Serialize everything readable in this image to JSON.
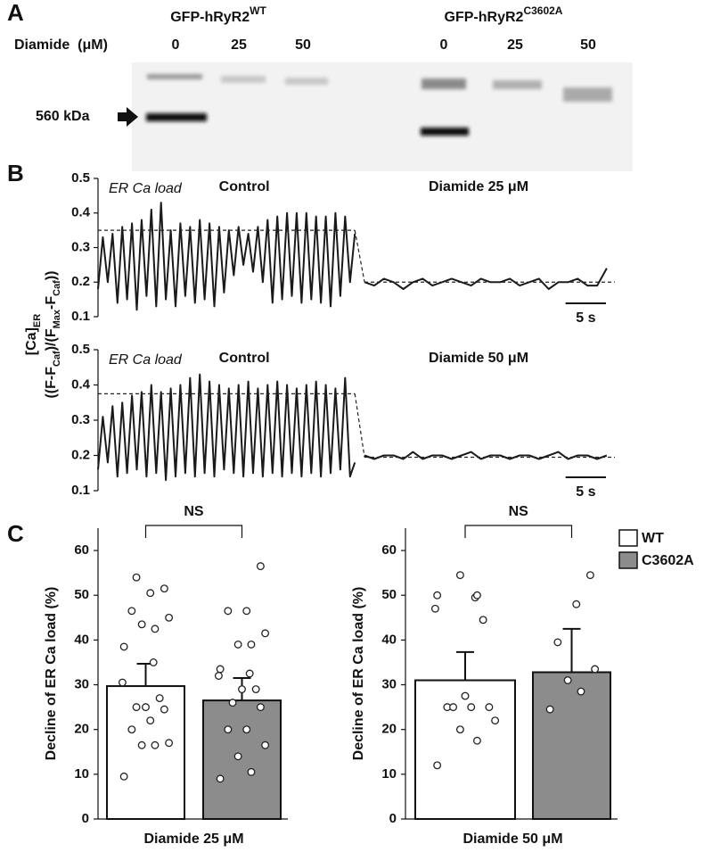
{
  "panel_a": {
    "label": "A",
    "constructs": [
      {
        "name": "GFP-hRyR2",
        "sup": "WT"
      },
      {
        "name": "GFP-hRyR2",
        "sup": "C3602A"
      }
    ],
    "row_label": "Diamide  (μM)",
    "lanes": [
      0,
      25,
      50,
      0,
      25,
      50
    ],
    "marker": "560 kDa"
  },
  "chart_data": [
    {
      "type": "line",
      "panel": "B",
      "ylabel": [
        [
          "[Ca]",
          "ER"
        ],
        [
          "((F-F",
          "Caf",
          ")/(F",
          "Max",
          "-F",
          "Caf",
          "))"
        ]
      ],
      "annotation": "ER Ca load",
      "ylim": [
        0.1,
        0.5
      ],
      "yticks": [
        0.1,
        0.2,
        0.3,
        0.4,
        0.5
      ],
      "xlim": [
        0,
        64
      ],
      "series": [
        {
          "name": "Control",
          "color": "#1a1a1a",
          "x": [
            0,
            0.6,
            1.2,
            1.8,
            2.4,
            3,
            3.6,
            4.2,
            4.8,
            5.4,
            6,
            6.6,
            7.2,
            7.8,
            8.4,
            9,
            9.6,
            10.2,
            10.8,
            11.4,
            12,
            12.6,
            13.2,
            13.8,
            14.4,
            15,
            15.6,
            16.2,
            16.8,
            17.4,
            18,
            18.6,
            19.2,
            19.8,
            20.4,
            21,
            21.6,
            22.2,
            22.8,
            23.4,
            24,
            24.6,
            25.2,
            25.8,
            26.4,
            27,
            27.6,
            28.2,
            28.8,
            29.4,
            30,
            30.6,
            31.2,
            31.8
          ],
          "values": [
            0.18,
            0.33,
            0.2,
            0.34,
            0.14,
            0.36,
            0.15,
            0.37,
            0.12,
            0.38,
            0.16,
            0.41,
            0.13,
            0.43,
            0.15,
            0.35,
            0.13,
            0.37,
            0.16,
            0.36,
            0.14,
            0.38,
            0.15,
            0.37,
            0.13,
            0.36,
            0.17,
            0.35,
            0.22,
            0.36,
            0.25,
            0.34,
            0.23,
            0.36,
            0.2,
            0.38,
            0.14,
            0.39,
            0.15,
            0.4,
            0.16,
            0.4,
            0.14,
            0.4,
            0.15,
            0.39,
            0.14,
            0.39,
            0.13,
            0.4,
            0.16,
            0.39,
            0.2,
            0.34
          ]
        },
        {
          "name": "Diamide  25 μM",
          "color": "#1a1a1a",
          "x": [
            33,
            34.2,
            35.4,
            36.6,
            37.8,
            39,
            40.2,
            41.4,
            42.6,
            43.8,
            45,
            46.2,
            47.4,
            48.6,
            49.8,
            51,
            52.2,
            53.4,
            54.6,
            55.8,
            57,
            58.2,
            59.4,
            60.6,
            61.8,
            63
          ],
          "values": [
            0.2,
            0.19,
            0.21,
            0.2,
            0.18,
            0.2,
            0.21,
            0.19,
            0.2,
            0.21,
            0.2,
            0.19,
            0.21,
            0.2,
            0.2,
            0.21,
            0.19,
            0.2,
            0.21,
            0.18,
            0.2,
            0.2,
            0.21,
            0.19,
            0.19,
            0.24
          ]
        }
      ],
      "ca_load": [
        0.35,
        0.2
      ],
      "scalebar": {
        "value": 5,
        "label": "5 s"
      }
    },
    {
      "type": "line",
      "annotation": "ER Ca load",
      "ylim": [
        0.1,
        0.5
      ],
      "yticks": [
        0.1,
        0.2,
        0.3,
        0.4,
        0.5
      ],
      "xlim": [
        0,
        64
      ],
      "series": [
        {
          "name": "Control",
          "color": "#1a1a1a",
          "x": [
            0,
            0.6,
            1.2,
            1.8,
            2.4,
            3,
            3.6,
            4.2,
            4.8,
            5.4,
            6,
            6.6,
            7.2,
            7.8,
            8.4,
            9,
            9.6,
            10.2,
            10.8,
            11.4,
            12,
            12.6,
            13.2,
            13.8,
            14.4,
            15,
            15.6,
            16.2,
            16.8,
            17.4,
            18,
            18.6,
            19.2,
            19.8,
            20.4,
            21,
            21.6,
            22.2,
            22.8,
            23.4,
            24,
            24.6,
            25.2,
            25.8,
            26.4,
            27,
            27.6,
            28.2,
            28.8,
            29.4,
            30,
            30.6,
            31.2,
            31.8
          ],
          "values": [
            0.16,
            0.31,
            0.18,
            0.34,
            0.14,
            0.35,
            0.15,
            0.37,
            0.16,
            0.38,
            0.14,
            0.4,
            0.15,
            0.38,
            0.13,
            0.39,
            0.14,
            0.4,
            0.15,
            0.42,
            0.14,
            0.43,
            0.15,
            0.41,
            0.14,
            0.4,
            0.16,
            0.39,
            0.15,
            0.4,
            0.14,
            0.41,
            0.15,
            0.39,
            0.14,
            0.4,
            0.15,
            0.41,
            0.14,
            0.4,
            0.15,
            0.39,
            0.14,
            0.4,
            0.15,
            0.41,
            0.14,
            0.4,
            0.15,
            0.39,
            0.16,
            0.42,
            0.14,
            0.18
          ]
        },
        {
          "name": "Diamide  50 μM",
          "color": "#1a1a1a",
          "x": [
            33,
            34.2,
            35.4,
            36.6,
            37.8,
            39,
            40.2,
            41.4,
            42.6,
            43.8,
            45,
            46.2,
            47.4,
            48.6,
            49.8,
            51,
            52.2,
            53.4,
            54.6,
            55.8,
            57,
            58.2,
            59.4,
            60.6,
            61.8,
            63
          ],
          "values": [
            0.2,
            0.19,
            0.2,
            0.2,
            0.19,
            0.21,
            0.19,
            0.2,
            0.2,
            0.19,
            0.2,
            0.21,
            0.19,
            0.2,
            0.2,
            0.19,
            0.2,
            0.2,
            0.19,
            0.2,
            0.21,
            0.19,
            0.2,
            0.2,
            0.19,
            0.2
          ]
        }
      ],
      "ca_load": [
        0.375,
        0.195
      ],
      "scalebar": {
        "value": 5,
        "label": "5 s"
      }
    },
    {
      "type": "bar",
      "panel": "C",
      "ylabel": "Decline  of ER Ca load  (%)",
      "xlabel": "Diamide  25 μM",
      "annotation": "NS",
      "ylim": [
        0,
        65
      ],
      "yticks": [
        0,
        10,
        20,
        30,
        40,
        50,
        60
      ],
      "series": [
        {
          "color": "#ffffff",
          "values": [
            29.7
          ],
          "errors": [
            5.0
          ],
          "points": [
            9.5,
            16.5,
            16.5,
            17,
            20,
            22,
            24.5,
            25,
            25,
            27,
            30.5,
            35,
            38.5,
            42.5,
            43.5,
            45,
            46.5,
            50.5,
            51.5,
            54
          ]
        },
        {
          "color": "#8c8c8c",
          "values": [
            26.5
          ],
          "errors": [
            5.0
          ],
          "points": [
            9,
            10.5,
            14,
            16.5,
            20,
            20,
            25,
            26,
            29,
            29,
            32,
            32.5,
            33.5,
            39,
            39,
            41.5,
            46.5,
            46.5,
            56.5
          ]
        }
      ]
    },
    {
      "type": "bar",
      "ylabel": "Decline  of ER Ca load  (%)",
      "xlabel": "Diamide  50 μM",
      "annotation": "NS",
      "ylim": [
        0,
        65
      ],
      "yticks": [
        0,
        10,
        20,
        30,
        40,
        50,
        60
      ],
      "legend": "top-right",
      "series": [
        {
          "name": "WT",
          "color": "#ffffff",
          "values": [
            31
          ],
          "errors": [
            6.3
          ],
          "points": [
            12,
            17.5,
            20,
            22,
            25,
            25,
            25,
            25,
            27.5,
            44.5,
            47,
            49.5,
            50,
            50,
            54.5
          ]
        },
        {
          "name": "C3602A",
          "color": "#8c8c8c",
          "values": [
            32.8
          ],
          "errors": [
            9.7
          ],
          "points": [
            24.5,
            28.5,
            31,
            33.5,
            39.5,
            48,
            54.5
          ]
        }
      ]
    }
  ]
}
